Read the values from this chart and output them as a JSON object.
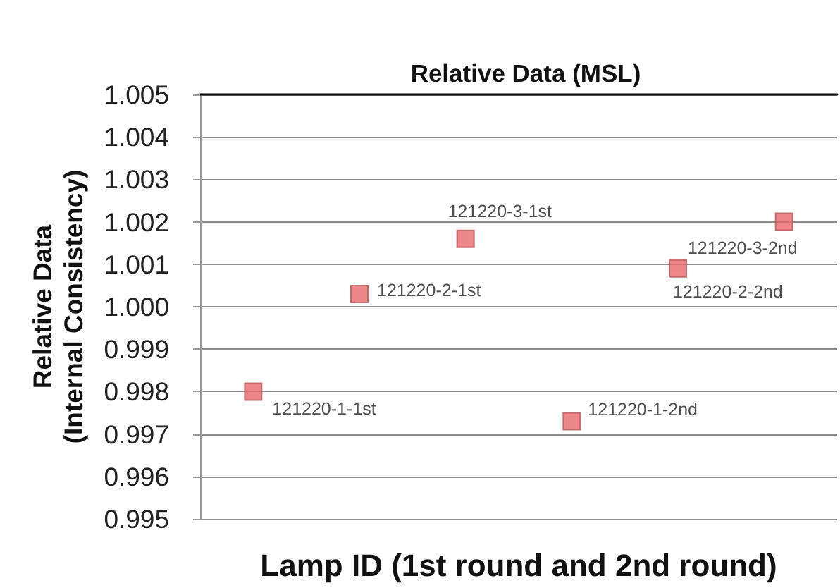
{
  "chart_data": {
    "type": "scatter",
    "title": "Relative Data (MSL)",
    "xlabel": "Lamp ID (1st round and 2nd round)",
    "ylabel": "Relative Data\n(Internal Consistency)",
    "categories": [
      null,
      null,
      null,
      null,
      null,
      null
    ],
    "values": [
      0.998,
      1.0003,
      1.0016,
      0.9973,
      1.0009,
      1.002
    ],
    "value_labels": [
      "121220-1-1st",
      "121220-2-1st",
      "121220-3-1st",
      "121220-1-2nd",
      "121220-2-2nd",
      "121220-3-2nd"
    ],
    "color": "#e8696b",
    "ylim": [
      0.995,
      1.005
    ],
    "yticks": [
      0.995,
      0.996,
      0.997,
      0.998,
      0.999,
      {
        "value": 1,
        "label": "1.000"
      },
      1.001,
      1.002,
      1.003,
      1.004,
      1.005
    ],
    "grid": "y",
    "marker": "square",
    "tick_labels": "y"
  }
}
